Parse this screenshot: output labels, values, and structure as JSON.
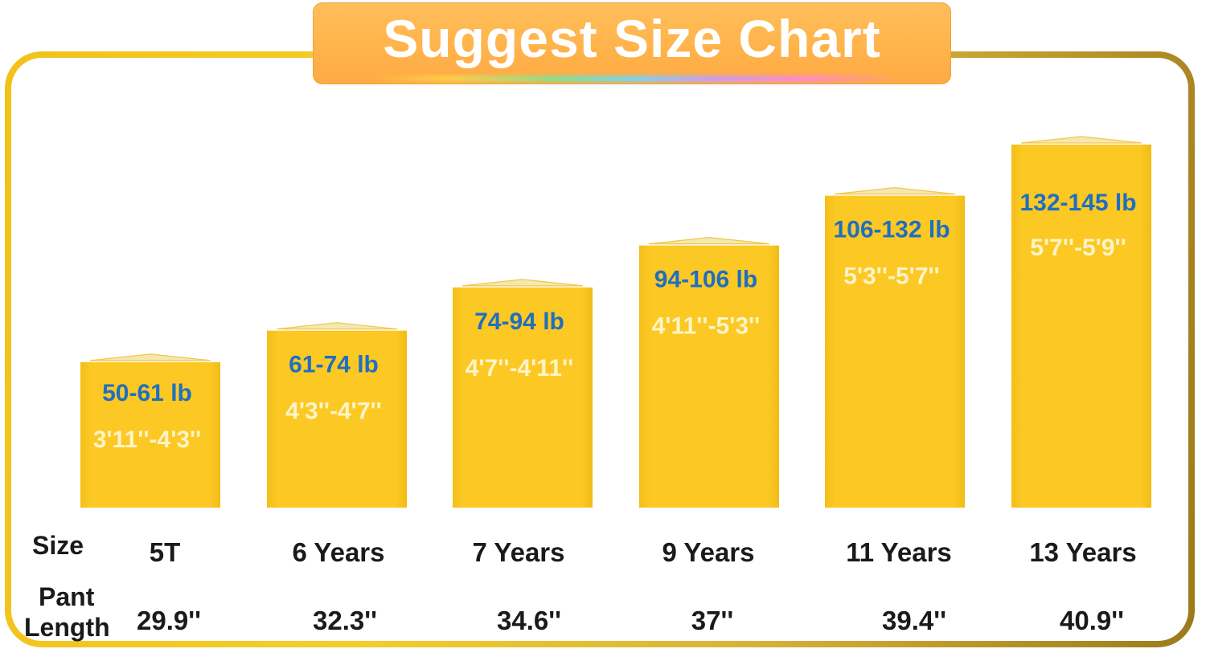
{
  "title": "Suggest Size Chart",
  "row_labels": {
    "size": "Size",
    "pant_line1": "Pant",
    "pant_line2": "Length"
  },
  "colors": {
    "bar": "#fbc724",
    "weight_text": "#1f6fc0",
    "height_text": "#fff4c8",
    "title_box": "#ffb24a"
  },
  "chart_data": {
    "type": "bar",
    "title": "Suggest Size Chart",
    "categories": [
      "5T",
      "6 Years",
      "7 Years",
      "9 Years",
      "11 Years",
      "13 Years"
    ],
    "weights": [
      "50-61 lb",
      "61-74 lb",
      "74-94 lb",
      "94-106 lb",
      "106-132 lb",
      "132-145 lb"
    ],
    "heights": [
      "3'11''-4'3''",
      "4'3''-4'7''",
      "4'7''-4'11''",
      "4'11''-5'3''",
      "5'3''-5'7''",
      "5'7''-5'9''"
    ],
    "pant_lengths": [
      "29.9''",
      "32.3''",
      "34.6''",
      "37''",
      "39.4''",
      "40.9''"
    ],
    "values": [
      55.5,
      67.5,
      84,
      100,
      119,
      138.5
    ],
    "ylim": [
      0,
      152
    ],
    "grid": false,
    "legend": "none"
  }
}
